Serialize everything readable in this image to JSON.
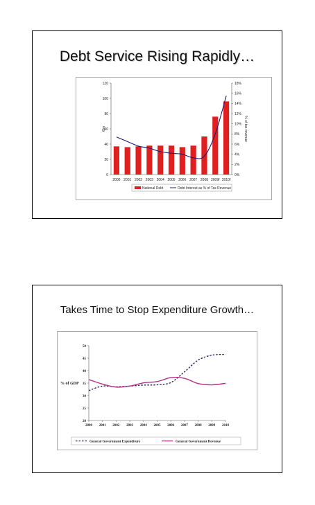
{
  "slides": [
    {
      "title": "Debt Service Rising Rapidly…"
    },
    {
      "title": "Takes Time to Stop Expenditure Growth…"
    }
  ],
  "chart_data": [
    {
      "type": "bar",
      "categories": [
        "2000",
        "2001",
        "2002",
        "2003",
        "2004",
        "2005",
        "2006",
        "2007",
        "2008",
        "2009f",
        "2010f"
      ],
      "series": [
        {
          "name": "National Debt",
          "kind": "bar",
          "axis": "left",
          "color": "#e02020",
          "values": [
            37,
            36,
            37,
            38,
            38,
            38,
            36,
            38,
            50,
            76,
            96
          ]
        },
        {
          "name": "Debt Interest as % of Tax Revenue",
          "kind": "line",
          "axis": "right",
          "color": "#1a1a6e",
          "values": [
            7.4,
            6.5,
            5.6,
            5.2,
            4.5,
            4.2,
            4.0,
            3.3,
            3.6,
            8.0,
            15.5
          ]
        }
      ],
      "ylabel": "€bn",
      "y2label": "% of tax revenue",
      "ylim": [
        0,
        120
      ],
      "yticks": [
        0,
        20,
        40,
        60,
        80,
        100,
        120
      ],
      "y2lim": [
        0,
        18
      ],
      "y2ticks": [
        "0%",
        "2%",
        "4%",
        "6%",
        "8%",
        "10%",
        "12%",
        "14%",
        "16%",
        "18%"
      ],
      "legend": "bottom",
      "grid": false
    },
    {
      "type": "line",
      "categories": [
        "2000",
        "2001",
        "2002",
        "2003",
        "2004",
        "2005",
        "2006",
        "2007",
        "2008",
        "2009",
        "2010"
      ],
      "series": [
        {
          "name": "General Government Expenditure",
          "style": "dashed",
          "color": "#1a1a4e",
          "values": [
            32,
            33.8,
            33.5,
            33.8,
            34.2,
            34.3,
            35.2,
            39.5,
            44.2,
            46.2,
            46.5
          ]
        },
        {
          "name": "General Government Revenue",
          "style": "solid",
          "color": "#b0308a",
          "values": [
            36.4,
            34.6,
            33.4,
            33.8,
            35.1,
            35.6,
            37.2,
            36.9,
            34.8,
            34.3,
            34.9
          ]
        }
      ],
      "ylabel": "% of GDP",
      "ylim": [
        20,
        50
      ],
      "yticks": [
        20,
        25,
        30,
        35,
        40,
        45,
        50
      ],
      "legend": "bottom",
      "grid": false
    }
  ]
}
